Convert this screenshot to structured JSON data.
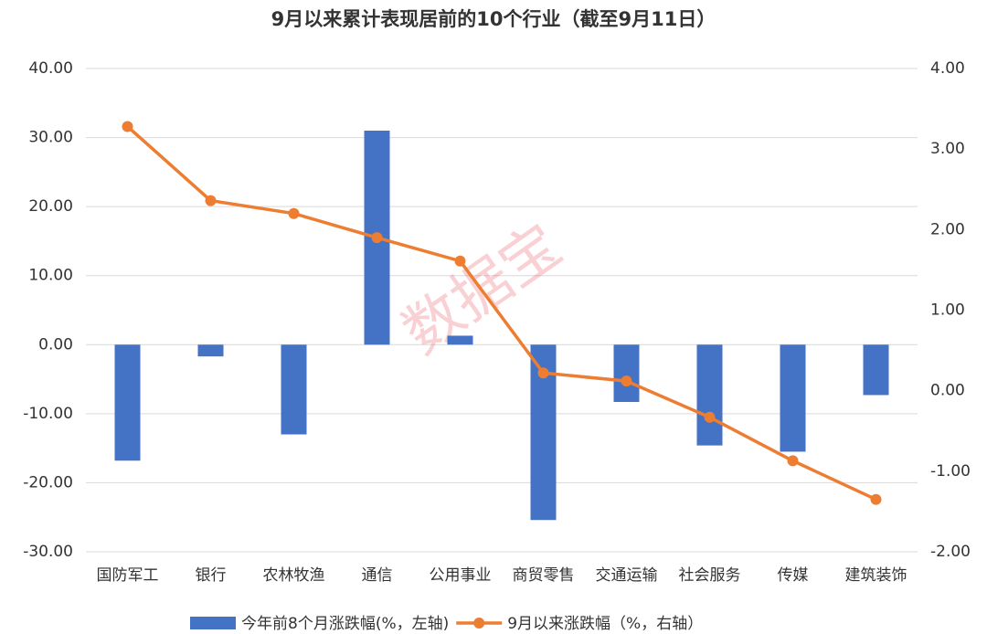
{
  "chart_data": {
    "type": "bar-line",
    "title": "9月以来累计表现居前的10个行业（截至9月11日）",
    "watermark": "数据宝",
    "categories": [
      "国防军工",
      "银行",
      "农林牧渔",
      "通信",
      "公用事业",
      "商贸零售",
      "交通运输",
      "社会服务",
      "传媒",
      "建筑装饰"
    ],
    "series": [
      {
        "name": "今年前8个月涨跌幅(%，左轴)",
        "type": "bar",
        "color": "#4472c4",
        "values": [
          -16.8,
          -1.7,
          -13.0,
          31.0,
          1.3,
          -25.4,
          -8.3,
          -14.6,
          -15.5,
          -7.3
        ]
      },
      {
        "name": "9月以来涨跌幅（%，右轴）",
        "type": "line",
        "axis": "y2",
        "color": "#ed7d31",
        "values": [
          3.28,
          2.36,
          2.2,
          1.9,
          1.61,
          0.22,
          0.12,
          -0.33,
          -0.87,
          -1.35
        ]
      }
    ],
    "ylim": [
      -30,
      40
    ],
    "yticks": [
      {
        "value": -30,
        "label": "-30.00"
      },
      {
        "value": -20,
        "label": "-20.00"
      },
      {
        "value": -10,
        "label": "-10.00"
      },
      {
        "value": 0,
        "label": "0.00"
      },
      {
        "value": 10,
        "label": "10.00"
      },
      {
        "value": 20,
        "label": "20.00"
      },
      {
        "value": 30,
        "label": "30.00"
      },
      {
        "value": 40,
        "label": "40.00"
      }
    ],
    "y2lim": [
      -2,
      4
    ],
    "y2ticks": [
      {
        "value": -2,
        "label": "-2.00"
      },
      {
        "value": -1,
        "label": "-1.00"
      },
      {
        "value": 0,
        "label": "0.00"
      },
      {
        "value": 1,
        "label": "1.00"
      },
      {
        "value": 2,
        "label": "2.00"
      },
      {
        "value": 3,
        "label": "3.00"
      },
      {
        "value": 4,
        "label": "4.00"
      }
    ],
    "grid": true
  }
}
